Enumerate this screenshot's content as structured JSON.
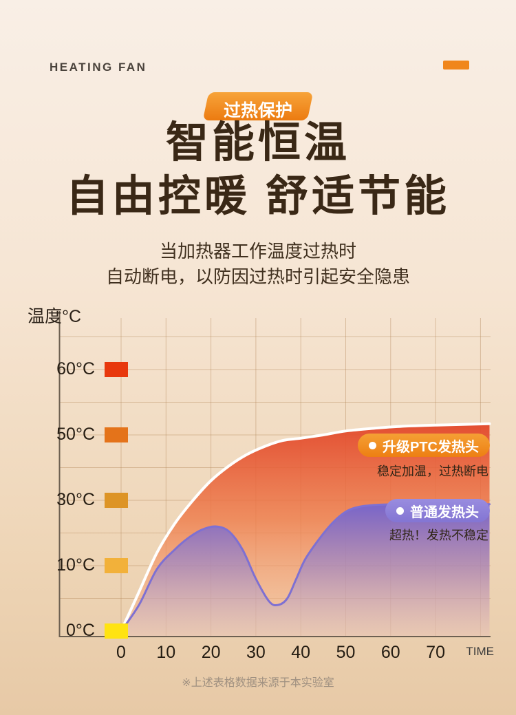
{
  "header": {
    "brand": "HEATING FAN"
  },
  "hero": {
    "badge": "过热保护",
    "title_line1": "智能恒温",
    "title_line2": "自由控暖 舒适节能",
    "desc_line1": "当加热器工作温度过热时",
    "desc_line2": "自动断电，以防因过热时引起安全隐患"
  },
  "accent_color": "#f0861b",
  "chart_data": {
    "type": "area",
    "title": "",
    "ylabel": "温度°C",
    "xlabel": "TIME",
    "x_ticks": [
      0,
      10,
      20,
      30,
      40,
      50,
      60,
      70
    ],
    "y_ticks": [
      {
        "label": "0°C",
        "value": 0,
        "color": "#ffe312"
      },
      {
        "label": "10°C",
        "value": 10,
        "color": "#f2b13a"
      },
      {
        "label": "30°C",
        "value": 30,
        "color": "#dd9426"
      },
      {
        "label": "50°C",
        "value": 50,
        "color": "#e4731a"
      },
      {
        "label": "60°C",
        "value": 60,
        "color": "#e8380d"
      }
    ],
    "y_scale_note": "labeled ticks 0/10/30/50/60 are evenly spaced (non-linear scale)",
    "grid": true,
    "legend_position": "right-on-chart",
    "series": [
      {
        "name": "升级PTC发热头",
        "note": "稳定加温，过热断电",
        "line_color": "#ffffff",
        "fill_top": "#e2472a",
        "points": [
          [
            0,
            0
          ],
          [
            4,
            6
          ],
          [
            8,
            14
          ],
          [
            12,
            23
          ],
          [
            16,
            30
          ],
          [
            20,
            36
          ],
          [
            24,
            40.5
          ],
          [
            28,
            44
          ],
          [
            32,
            46.5
          ],
          [
            36,
            48.3
          ],
          [
            40,
            49
          ],
          [
            45,
            50
          ],
          [
            50,
            50.6
          ],
          [
            56,
            51
          ],
          [
            62,
            51.3
          ],
          [
            70,
            51.5
          ],
          [
            82,
            51.7
          ]
        ]
      },
      {
        "name": "普通发热头",
        "note": "超热！发热不稳定",
        "line_color": "#7e70d2",
        "fill_top": "#7264d0",
        "points": [
          [
            0,
            0
          ],
          [
            4,
            4
          ],
          [
            8,
            9.5
          ],
          [
            12,
            15
          ],
          [
            15,
            18.5
          ],
          [
            18,
            21
          ],
          [
            21,
            22
          ],
          [
            24,
            20.5
          ],
          [
            27,
            15
          ],
          [
            30,
            8
          ],
          [
            33,
            4.5
          ],
          [
            35,
            4
          ],
          [
            37,
            5
          ],
          [
            39,
            8
          ],
          [
            41,
            12
          ],
          [
            44,
            18
          ],
          [
            47,
            23
          ],
          [
            50,
            26.5
          ],
          [
            53,
            28
          ],
          [
            57,
            28.6
          ],
          [
            62,
            28.8
          ],
          [
            70,
            28.8
          ],
          [
            82,
            28.8
          ]
        ]
      }
    ]
  },
  "footer": {
    "note": "※上述表格数据来源于本实验室"
  }
}
